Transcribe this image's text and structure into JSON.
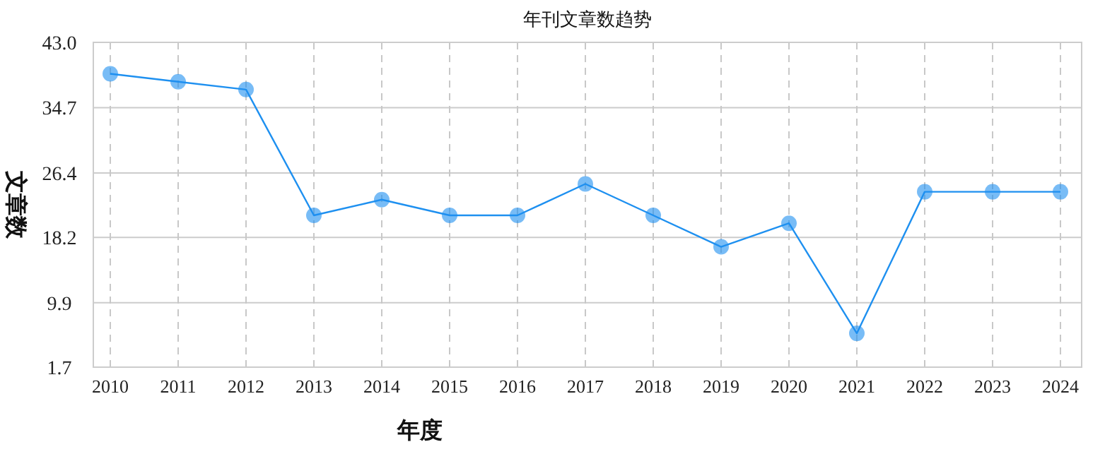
{
  "chart_data": {
    "type": "line",
    "title": "年刊文章数趋势",
    "xlabel": "年度",
    "ylabel": "文章数",
    "categories": [
      "2010",
      "2011",
      "2012",
      "2013",
      "2014",
      "2015",
      "2016",
      "2017",
      "2018",
      "2019",
      "2020",
      "2021",
      "2022",
      "2023",
      "2024"
    ],
    "series": [
      {
        "color": "#1e90f0",
        "values": [
          39,
          38,
          37,
          21,
          23,
          21,
          21,
          25,
          21,
          17,
          20,
          6,
          24,
          24,
          24
        ]
      }
    ],
    "ylim": [
      1.7,
      43.0
    ],
    "yticks": [
      1.7,
      9.9,
      18.2,
      26.4,
      34.7,
      {
        "value": 43.0,
        "label": "43.0"
      }
    ],
    "grid": true,
    "marker": "circle",
    "line_style": "solid"
  }
}
